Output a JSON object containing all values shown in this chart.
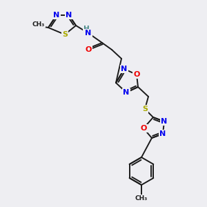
{
  "bg_color": "#eeeef2",
  "bond_color": "#1a1a1a",
  "atom_colors": {
    "N": "#0000ee",
    "O": "#ee0000",
    "S": "#aaaa00",
    "H": "#4a8a8a",
    "C": "#1a1a1a"
  },
  "font_size": 8.0,
  "line_width": 1.4
}
